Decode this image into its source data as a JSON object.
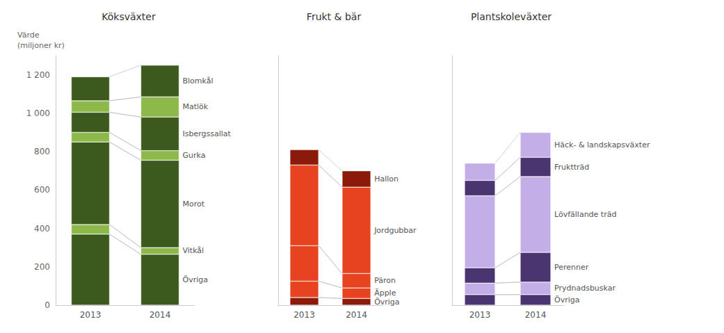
{
  "chart_data": [
    {
      "type": "bar",
      "title": "Köksväxter",
      "ylabel": "Värde\n(miljoner kr)",
      "categories": [
        "2013",
        "2014"
      ],
      "stacked": true,
      "grid": false,
      "ylim": [
        0,
        1300
      ],
      "yticks": [
        0,
        200,
        400,
        600,
        800,
        {
          "value": 1000,
          "label": "1 000"
        },
        {
          "value": 1200,
          "label": "1 200"
        }
      ],
      "series": [
        {
          "name": "Övriga",
          "color": "#3d5a1e",
          "values": [
            370,
            265
          ]
        },
        {
          "name": "Vitkål",
          "color": "#8db84a",
          "values": [
            50,
            35
          ]
        },
        {
          "name": "Morot",
          "color": "#3d5a1e",
          "values": [
            430,
            455
          ]
        },
        {
          "name": "Gurka",
          "color": "#8db84a",
          "values": [
            50,
            50
          ]
        },
        {
          "name": "Isbergssallat",
          "color": "#3d5a1e",
          "values": [
            105,
            175
          ]
        },
        {
          "name": "Matlök",
          "color": "#8db84a",
          "values": [
            60,
            105
          ]
        },
        {
          "name": "Blomkål",
          "color": "#3d5a1e",
          "values": [
            125,
            165
          ]
        }
      ]
    },
    {
      "type": "bar",
      "title": "Frukt & bär",
      "categories": [
        "2013",
        "2014"
      ],
      "stacked": true,
      "grid": false,
      "tick_labels": "x",
      "ylim": [
        0,
        1300
      ],
      "yticks": [
        0,
        200,
        400,
        600,
        800,
        1000,
        1200
      ],
      "series": [
        {
          "name": "Övriga",
          "color": "#8b1a0a",
          "values": [
            40,
            35
          ]
        },
        {
          "name": "Äpple",
          "color": "#e84320",
          "values": [
            85,
            55
          ]
        },
        {
          "name": "Päron",
          "color": "#e84320",
          "values": [
            185,
            75
          ]
        },
        {
          "name": "Jordgubbar",
          "color": "#e84320",
          "values": [
            420,
            450
          ]
        },
        {
          "name": "Hallon",
          "color": "#8b1a0a",
          "values": [
            80,
            85
          ]
        }
      ]
    },
    {
      "type": "bar",
      "title": "Plantskoleväxter",
      "categories": [
        "2013",
        "2014"
      ],
      "stacked": true,
      "grid": false,
      "tick_labels": "x",
      "ylim": [
        0,
        1300
      ],
      "yticks": [
        0,
        200,
        400,
        600,
        800,
        1000,
        1200
      ],
      "series": [
        {
          "name": "Övriga",
          "color": "#4a3570",
          "values": [
            55,
            55
          ]
        },
        {
          "name": "Prydnadsbuskar",
          "color": "#c4aee8",
          "values": [
            60,
            65
          ]
        },
        {
          "name": "Perenner",
          "color": "#4a3570",
          "values": [
            80,
            155
          ]
        },
        {
          "name": "Lövfällande träd",
          "color": "#c4aee8",
          "values": [
            375,
            395
          ]
        },
        {
          "name": "Fruktträd",
          "color": "#4a3570",
          "values": [
            80,
            100
          ]
        },
        {
          "name": "Häck- & landskapsväxter",
          "color": "#c4aee8",
          "values": [
            90,
            130
          ]
        }
      ]
    }
  ]
}
